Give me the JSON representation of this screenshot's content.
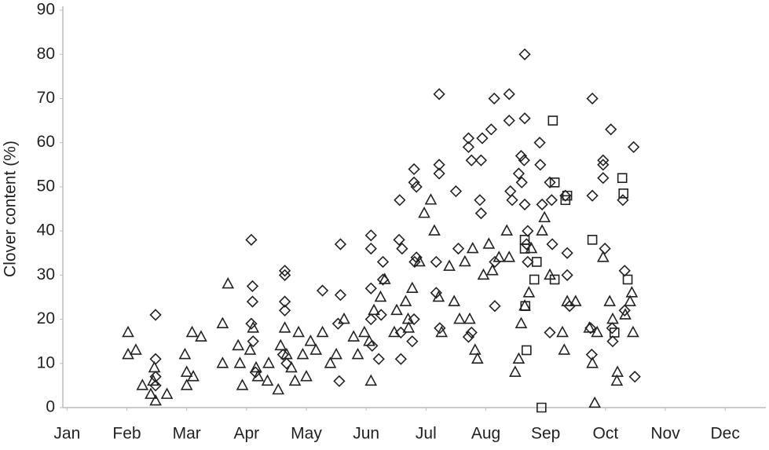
{
  "chart_data": {
    "type": "scatter",
    "y_label": "Clover content (%)",
    "xlim": [
      0.93,
      12.68
    ],
    "xticks": [
      {
        "value": 1,
        "label": "Jan"
      },
      {
        "value": 2,
        "label": "Feb"
      },
      {
        "value": 3,
        "label": "Mar"
      },
      {
        "value": 4,
        "label": "Apr"
      },
      {
        "value": 5,
        "label": "May"
      },
      {
        "value": 6,
        "label": "Jun"
      },
      {
        "value": 7,
        "label": "Jul"
      },
      {
        "value": 8,
        "label": "Aug"
      },
      {
        "value": 9,
        "label": "Sep"
      },
      {
        "value": 10,
        "label": "Oct"
      },
      {
        "value": 11,
        "label": "Nov"
      },
      {
        "value": 12,
        "label": "Dec"
      }
    ],
    "ylim": [
      0,
      90
    ],
    "yticks": [
      0,
      10,
      20,
      30,
      40,
      50,
      60,
      70,
      80,
      90
    ],
    "grid": false,
    "series": [
      {
        "marker": "diamond",
        "color": "#222222",
        "x": [
          2.48,
          2.48,
          2.48,
          2.48,
          4.08,
          4.1,
          4.1,
          4.08,
          4.11,
          4.15,
          4.64,
          4.64,
          4.64,
          4.64,
          4.61,
          4.67,
          5.27,
          5.57,
          5.57,
          5.53,
          5.55,
          6.08,
          6.08,
          6.08,
          6.08,
          6.1,
          6.28,
          6.28,
          6.25,
          6.21,
          6.58,
          6.56,
          6.55,
          6.6,
          6.58,
          6.8,
          6.8,
          6.84,
          6.84,
          6.81,
          6.8,
          6.77,
          7.22,
          7.22,
          7.22,
          7.17,
          7.17,
          7.23,
          7.5,
          7.54,
          7.71,
          7.71,
          7.76,
          7.76,
          7.71,
          7.9,
          7.92,
          7.92,
          7.94,
          8.09,
          8.14,
          8.15,
          8.15,
          8.39,
          8.39,
          8.41,
          8.44,
          8.55,
          8.59,
          8.6,
          8.65,
          8.65,
          8.64,
          8.65,
          8.68,
          8.7,
          8.7,
          8.9,
          8.91,
          8.94,
          9.07,
          9.1,
          9.11,
          9.07,
          9.33,
          9.36,
          9.36,
          9.4,
          9.78,
          9.78,
          9.75,
          9.77,
          9.96,
          9.96,
          9.96,
          9.99,
          10.09,
          10.11,
          10.12,
          10.29,
          10.32,
          10.32,
          10.47,
          10.49
        ],
        "values": [
          21,
          11,
          7,
          5,
          38,
          27.5,
          24,
          19,
          15,
          8,
          31,
          30,
          24,
          22,
          12,
          10,
          26.5,
          37,
          25.5,
          19,
          6,
          39,
          36,
          27,
          20,
          14,
          33,
          29,
          21,
          11,
          11,
          47,
          38,
          36,
          17,
          54,
          51,
          50,
          34,
          33,
          20,
          15,
          71,
          55,
          53,
          33,
          26,
          18,
          49,
          36,
          61,
          59,
          56,
          17,
          16,
          47,
          44,
          56,
          61,
          63,
          70,
          33,
          23,
          71,
          65,
          49,
          47,
          53,
          57,
          51,
          80,
          65.5,
          56,
          46,
          37,
          40,
          33,
          60,
          55,
          46,
          51,
          47,
          37,
          17,
          48,
          35,
          30,
          23,
          70,
          48,
          18,
          12,
          56,
          55,
          52,
          36,
          63,
          18,
          15,
          47,
          31,
          22,
          59,
          7
        ]
      },
      {
        "marker": "triangle",
        "color": "#222222",
        "x": [
          2.02,
          2.02,
          2.15,
          2.26,
          2.4,
          2.44,
          2.46,
          2.48,
          2.67,
          2.97,
          3.0,
          3.0,
          3.09,
          3.11,
          3.24,
          3.6,
          3.6,
          3.69,
          3.86,
          3.89,
          3.93,
          4.06,
          4.11,
          4.16,
          4.19,
          4.35,
          4.37,
          4.53,
          4.57,
          4.64,
          4.67,
          4.75,
          4.81,
          4.87,
          4.94,
          5.0,
          5.07,
          5.16,
          5.27,
          5.4,
          5.5,
          5.63,
          5.79,
          5.86,
          5.97,
          6.05,
          6.13,
          6.08,
          6.24,
          6.31,
          6.47,
          6.51,
          6.66,
          6.7,
          6.71,
          6.77,
          6.89,
          6.97,
          7.08,
          7.14,
          7.21,
          7.26,
          7.39,
          7.47,
          7.56,
          7.65,
          7.73,
          7.78,
          7.82,
          7.86,
          7.96,
          8.05,
          8.11,
          8.22,
          8.35,
          8.39,
          8.49,
          8.55,
          8.59,
          8.65,
          8.72,
          8.76,
          8.94,
          8.98,
          9.07,
          9.28,
          9.31,
          9.36,
          9.5,
          9.73,
          9.78,
          9.82,
          9.86,
          9.96,
          10.07,
          10.12,
          10.19,
          10.2,
          10.33,
          10.41,
          10.44,
          10.46
        ],
        "values": [
          17,
          12,
          13,
          5,
          3,
          6,
          9,
          1.5,
          3,
          12,
          8,
          5,
          17,
          7,
          16,
          19,
          10,
          28,
          14,
          10,
          5,
          13,
          18,
          9,
          7,
          6,
          10,
          4,
          14,
          18,
          12,
          9,
          6,
          17,
          12,
          7,
          15,
          13,
          17,
          10,
          12,
          20,
          16,
          12,
          17,
          15,
          22,
          6,
          25,
          29,
          17,
          22,
          24,
          20,
          18,
          27,
          33,
          44,
          47,
          40,
          25,
          17,
          32,
          24,
          20,
          33,
          20,
          36,
          13,
          11,
          30,
          37,
          31,
          34,
          40,
          34,
          8,
          11,
          19,
          23,
          26,
          36,
          40,
          43,
          30,
          17,
          13,
          24,
          24,
          18,
          10,
          1,
          17,
          34,
          24,
          20,
          6,
          8,
          21,
          24,
          26,
          17
        ]
      },
      {
        "marker": "square",
        "color": "#222222",
        "x": [
          8.65,
          8.65,
          8.66,
          8.68,
          8.81,
          8.85,
          8.93,
          9.12,
          9.15,
          9.15,
          9.33,
          9.36,
          9.78,
          10.15,
          10.28,
          10.3,
          10.37
        ],
        "values": [
          38,
          36,
          23,
          13,
          29,
          33,
          0,
          65,
          29,
          51,
          47,
          48,
          38,
          17,
          52,
          48.5,
          29
        ]
      }
    ]
  }
}
